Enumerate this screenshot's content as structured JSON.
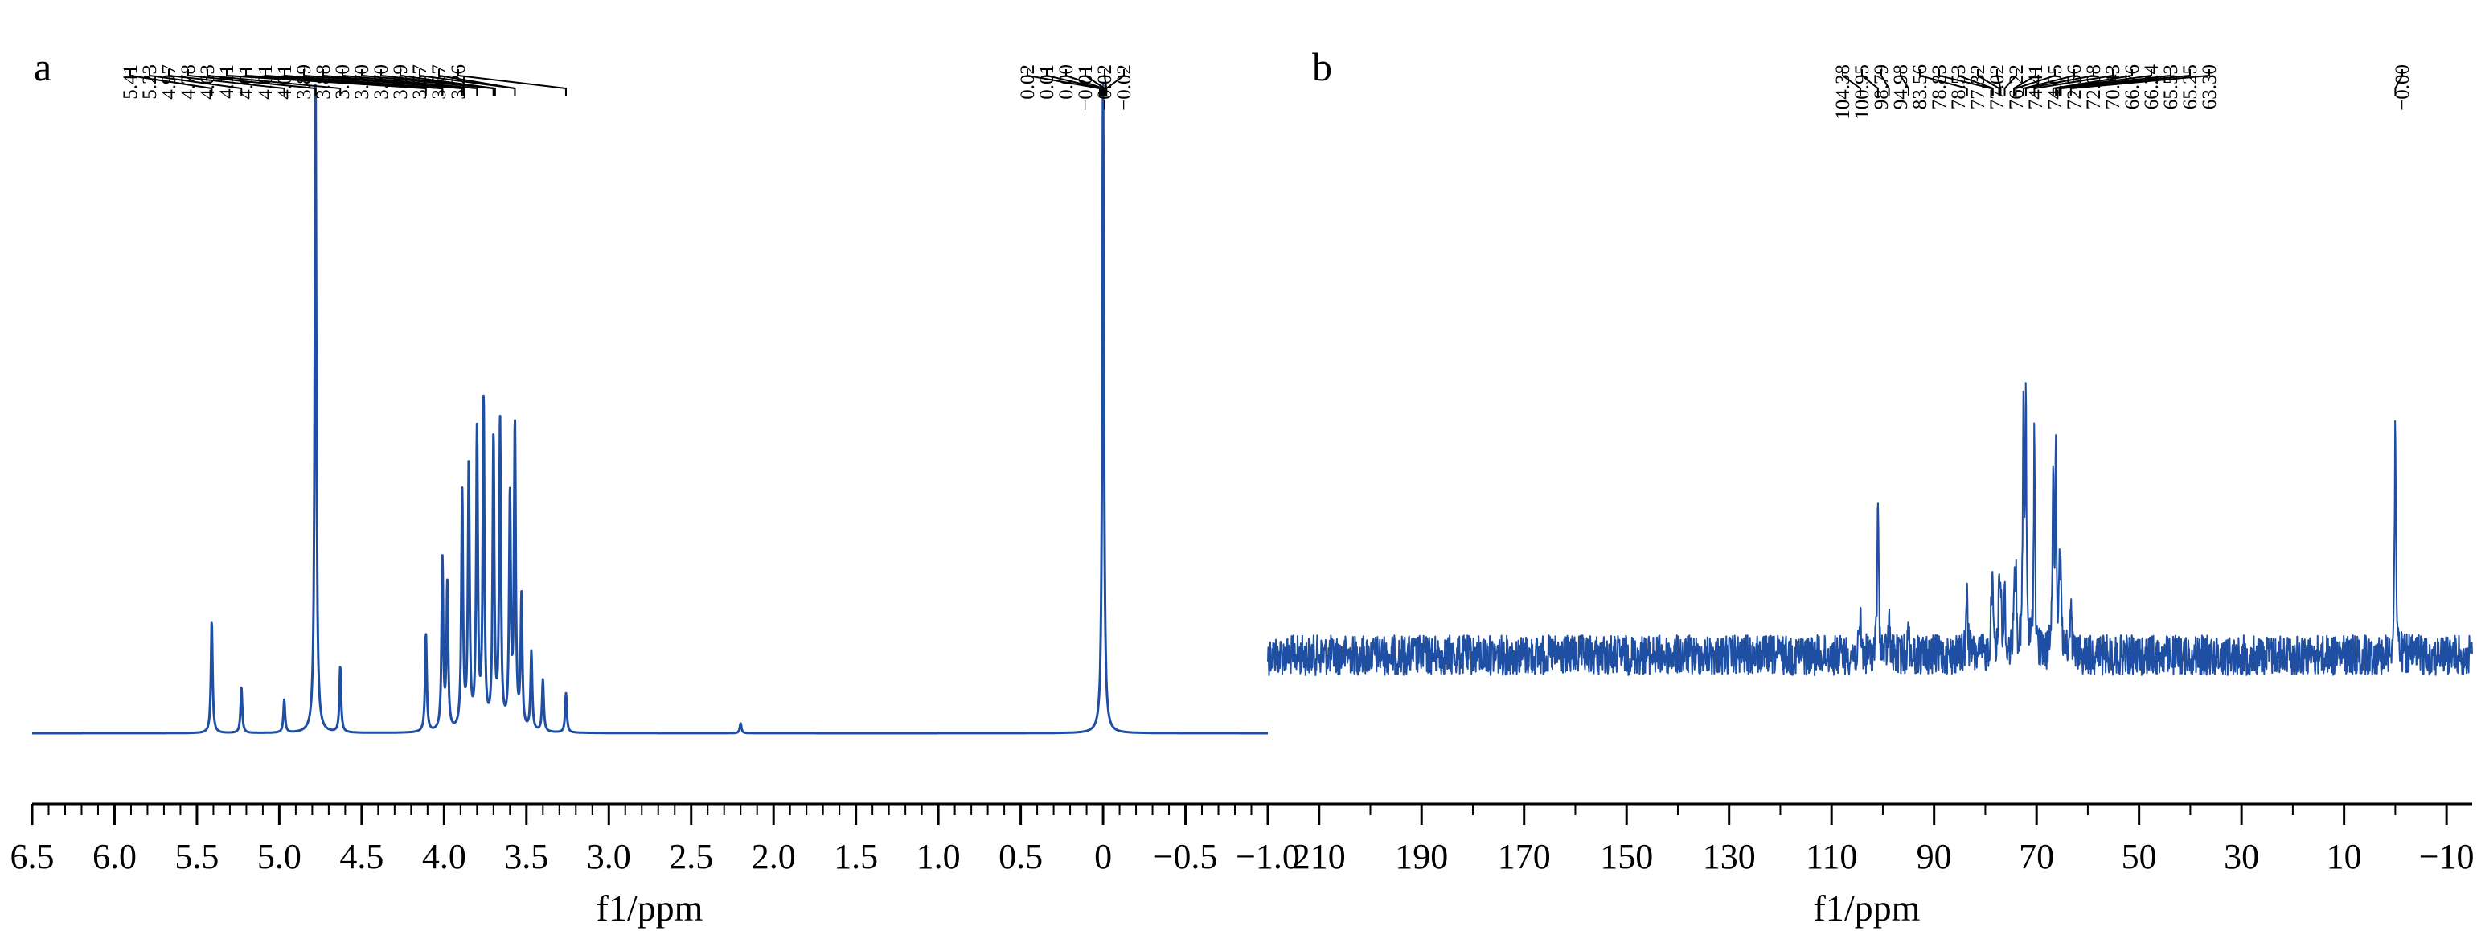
{
  "colors": {
    "spectrum": "#1f4fa3",
    "axis": "#000000"
  },
  "chart_data": [
    {
      "type": "line",
      "panel_label": "a",
      "xlabel": "f1/ppm",
      "ylabel": "",
      "xlim": [
        6.5,
        -1.0
      ],
      "x_reversed": true,
      "ticks": [
        "6.5",
        "6.0",
        "5.5",
        "5.0",
        "4.5",
        "4.0",
        "3.5",
        "3.0",
        "2.5",
        "2.0",
        "1.5",
        "1.0",
        "0.5",
        "0",
        "−0.5",
        "−1.0"
      ],
      "tick_values": [
        6.5,
        6.0,
        5.5,
        5.0,
        4.5,
        4.0,
        3.5,
        3.0,
        2.5,
        2.0,
        1.5,
        1.0,
        0.5,
        0.0,
        -0.5,
        -1.0
      ],
      "grid": false,
      "peak_labels": [
        "5.41",
        "5.23",
        "4.97",
        "4.78",
        "4.63",
        "4.11",
        "4.01",
        "4.01",
        "4.01",
        "3.89",
        "3.88",
        "3.80",
        "3.70",
        "3.70",
        "3.69",
        "3.57",
        "3.57",
        "3.26",
        "0.02",
        "0.01",
        "0.00",
        "−0.01",
        "−0.02",
        "−0.02"
      ],
      "peaks": [
        {
          "x": 5.41,
          "y": 0.17
        },
        {
          "x": 5.23,
          "y": 0.07
        },
        {
          "x": 4.97,
          "y": 0.05
        },
        {
          "x": 4.78,
          "y": 1.0
        },
        {
          "x": 4.63,
          "y": 0.1
        },
        {
          "x": 4.11,
          "y": 0.15
        },
        {
          "x": 4.01,
          "y": 0.26
        },
        {
          "x": 3.98,
          "y": 0.22
        },
        {
          "x": 3.89,
          "y": 0.36
        },
        {
          "x": 3.85,
          "y": 0.4
        },
        {
          "x": 3.8,
          "y": 0.45
        },
        {
          "x": 3.76,
          "y": 0.5
        },
        {
          "x": 3.7,
          "y": 0.44
        },
        {
          "x": 3.66,
          "y": 0.47
        },
        {
          "x": 3.6,
          "y": 0.35
        },
        {
          "x": 3.57,
          "y": 0.46
        },
        {
          "x": 3.53,
          "y": 0.2
        },
        {
          "x": 3.47,
          "y": 0.12
        },
        {
          "x": 3.4,
          "y": 0.08
        },
        {
          "x": 3.26,
          "y": 0.06
        },
        {
          "x": 2.2,
          "y": 0.015
        },
        {
          "x": 0.0,
          "y": 1.0
        }
      ]
    },
    {
      "type": "line",
      "panel_label": "b",
      "xlabel": "f1/ppm",
      "ylabel": "",
      "xlim": [
        220,
        -15
      ],
      "x_reversed": true,
      "ticks": [
        "210",
        "190",
        "170",
        "150",
        "130",
        "110",
        "90",
        "70",
        "50",
        "30",
        "10",
        "−10"
      ],
      "tick_values": [
        210,
        190,
        170,
        150,
        130,
        110,
        90,
        70,
        50,
        30,
        10,
        -10
      ],
      "grid": false,
      "peak_labels": [
        "104.38",
        "100.95",
        "98.79",
        "94.98",
        "83.56",
        "78.83",
        "78.53",
        "77.32",
        "77.02",
        "76.22",
        "74.41",
        "74.05",
        "72.56",
        "72.08",
        "70.43",
        "66.76",
        "66.24",
        "65.53",
        "65.25",
        "63.30",
        "−0.00"
      ],
      "peaks": [
        {
          "x": 104.38,
          "y": 0.12
        },
        {
          "x": 100.95,
          "y": 0.5
        },
        {
          "x": 98.79,
          "y": 0.1
        },
        {
          "x": 94.98,
          "y": 0.09
        },
        {
          "x": 83.56,
          "y": 0.22
        },
        {
          "x": 78.83,
          "y": 0.16
        },
        {
          "x": 78.53,
          "y": 0.18
        },
        {
          "x": 77.32,
          "y": 0.2
        },
        {
          "x": 77.02,
          "y": 0.19
        },
        {
          "x": 76.22,
          "y": 0.17
        },
        {
          "x": 74.41,
          "y": 0.2
        },
        {
          "x": 74.05,
          "y": 0.23
        },
        {
          "x": 72.56,
          "y": 0.72
        },
        {
          "x": 72.08,
          "y": 0.7
        },
        {
          "x": 70.43,
          "y": 0.67
        },
        {
          "x": 66.76,
          "y": 0.57
        },
        {
          "x": 66.24,
          "y": 0.55
        },
        {
          "x": 65.53,
          "y": 0.24
        },
        {
          "x": 65.25,
          "y": 0.2
        },
        {
          "x": 63.3,
          "y": 0.14
        },
        {
          "x": 0.0,
          "y": 0.73
        }
      ]
    }
  ]
}
